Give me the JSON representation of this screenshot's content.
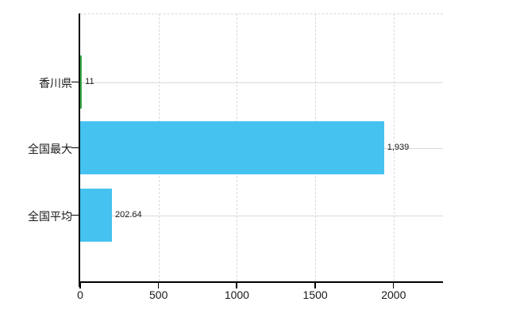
{
  "chart_data": {
    "type": "bar",
    "orientation": "horizontal",
    "title": "",
    "categories": [
      "香川県",
      "全国最大",
      "全国平均"
    ],
    "values": [
      11,
      1939,
      202.64
    ],
    "value_labels": [
      "11",
      "1,939",
      "202.64"
    ],
    "bar_colors": [
      "#3cae4c",
      "#45c2ef",
      "#45c2ef"
    ],
    "x_ticks": [
      0,
      500,
      1000,
      1500,
      2000
    ],
    "x_tick_labels": [
      "0",
      "500",
      "1000",
      "1500",
      "2000"
    ],
    "xlim": [
      0,
      2315
    ],
    "grid": true,
    "legend_position": "none",
    "colors": {
      "bar_blue": "#45c2ef",
      "bar_green": "#3cae4c",
      "gridline": "#d9d9d9",
      "axis": "#000000",
      "text": "#1a1a1a",
      "background": "#ffffff"
    }
  }
}
